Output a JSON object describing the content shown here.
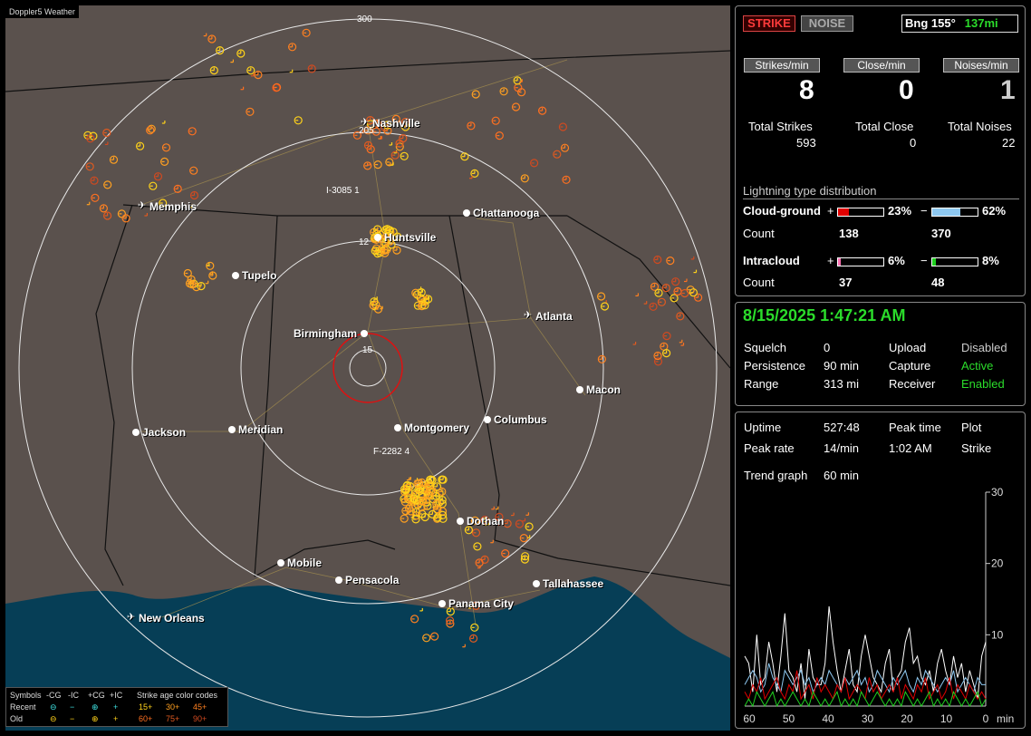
{
  "map": {
    "title": "Doppler5 Weather",
    "ring_labels": [
      "300",
      "205",
      "15"
    ],
    "cities": [
      {
        "name": "Nashville",
        "icon": "airport-icon"
      },
      {
        "name": "Memphis",
        "icon": "airport-icon"
      },
      {
        "name": "Chattanooga",
        "icon": "city-dot-icon"
      },
      {
        "name": "Huntsville",
        "icon": "city-dot-icon"
      },
      {
        "name": "Tupelo",
        "icon": "city-dot-icon"
      },
      {
        "name": "Atlanta",
        "icon": "airport-icon"
      },
      {
        "name": "Birmingham",
        "icon": "city-dot-icon"
      },
      {
        "name": "Macon",
        "icon": "city-dot-icon"
      },
      {
        "name": "Jackson",
        "icon": "city-dot-icon"
      },
      {
        "name": "Meridian",
        "icon": "city-dot-icon"
      },
      {
        "name": "Montgomery",
        "icon": "city-dot-icon"
      },
      {
        "name": "Columbus",
        "icon": "city-dot-icon"
      },
      {
        "name": "Dothan",
        "icon": "city-dot-icon"
      },
      {
        "name": "Mobile",
        "icon": "city-dot-icon"
      },
      {
        "name": "Pensacola",
        "icon": "city-dot-icon"
      },
      {
        "name": "Tallahassee",
        "icon": "city-dot-icon"
      },
      {
        "name": "Panama City",
        "icon": "city-dot-icon"
      },
      {
        "name": "New Orleans",
        "icon": "airport-icon"
      }
    ],
    "sensor_labels": [
      "I-3085 1",
      "F-2282 4",
      "12"
    ],
    "legend": {
      "symbols_label": "Symbols",
      "col_headers": [
        "-CG",
        "-IC",
        "+CG",
        "+IC"
      ],
      "recent_label": "Recent",
      "old_label": "Old",
      "age_title": "Strike age color codes",
      "age_recent": [
        "15+",
        "30+",
        "45+"
      ],
      "age_old": [
        "60+",
        "75+",
        "90+"
      ],
      "age_colors": [
        "#ffd21a",
        "#ffa020",
        "#ff8020",
        "#ff7020",
        "#e05a20",
        "#d04a20"
      ]
    }
  },
  "stats": {
    "strike_button": "STRIKE",
    "noise_button": "NOISE",
    "bearing": "Bng 155°",
    "distance": "137mi",
    "rate_buttons": [
      "Strikes/min",
      "Close/min",
      "Noises/min"
    ],
    "rates": [
      "8",
      "0",
      "1"
    ],
    "total_labels": [
      "Total Strikes",
      "Total Close",
      "Total Noises"
    ],
    "totals": [
      "593",
      "0",
      "22"
    ],
    "distribution_title": "Lightning type distribution",
    "cloud_ground": {
      "label": "Cloud-ground",
      "plus": "+",
      "minus": "−",
      "plus_pct": "23%",
      "minus_pct": "62%",
      "plus_value": 0.23,
      "minus_value": 0.62,
      "plus_color": "#e00000",
      "minus_color": "#8ec8f0"
    },
    "cg_count_label": "Count",
    "cg_counts": [
      "138",
      "370"
    ],
    "intracloud": {
      "label": "Intracloud",
      "plus": "+",
      "minus": "−",
      "plus_pct": "6%",
      "minus_pct": "8%",
      "plus_value": 0.06,
      "minus_value": 0.08,
      "plus_color": "#ff6fb0",
      "minus_color": "#20d020"
    },
    "ic_count_label": "Count",
    "ic_counts": [
      "37",
      "48"
    ]
  },
  "status": {
    "datetime": "8/15/2025 1:47:21 AM",
    "rows": [
      {
        "label": "Squelch",
        "value": "0",
        "label2": "Upload",
        "value2": "Disabled"
      },
      {
        "label": "Persistence",
        "value": "90 min",
        "label2": "Capture",
        "value2": "Active"
      },
      {
        "label": "Range",
        "value": "313 mi",
        "label2": "Receiver",
        "value2": "Enabled"
      }
    ],
    "value2_colors": [
      "#cccccc",
      "#2bdc2b",
      "#2bdc2b"
    ]
  },
  "trend": {
    "uptime_label": "Uptime",
    "uptime": "527:48",
    "peak_time_label": "Peak time",
    "peak_time": "1:02 AM",
    "plot_label": "Plot",
    "peak_rate_label": "Peak rate",
    "peak_rate": "14/min",
    "plot_value": "Strike",
    "trend_label": "Trend graph",
    "trend_value": "60 min",
    "chart_data": {
      "type": "line",
      "x_ticks": [
        "60",
        "50",
        "40",
        "30",
        "20",
        "10",
        "0"
      ],
      "x_unit": "min",
      "y_ticks": [
        "30",
        "20",
        "10"
      ],
      "ylim": [
        0,
        30
      ],
      "series": [
        {
          "color": "#ffffff",
          "values": [
            7,
            6,
            2,
            10,
            3,
            4,
            9,
            6,
            2,
            7,
            13,
            5,
            4,
            2,
            6,
            1,
            8,
            4,
            3,
            3,
            6,
            14,
            9,
            5,
            2,
            5,
            8,
            3,
            2,
            7,
            10,
            7,
            4,
            3,
            2,
            6,
            8,
            2,
            4,
            5,
            9,
            11,
            6,
            7,
            4,
            3,
            5,
            2,
            6,
            8,
            5,
            3,
            7,
            4,
            6,
            2,
            5,
            3,
            1,
            7,
            9
          ]
        },
        {
          "color": "#8ec8f0",
          "values": [
            3,
            4,
            5,
            4,
            2,
            3,
            6,
            4,
            3,
            2,
            5,
            4,
            3,
            4,
            5,
            3,
            4,
            2,
            3,
            4,
            3,
            5,
            4,
            3,
            2,
            4,
            3,
            4,
            5,
            3,
            4,
            2,
            3,
            5,
            4,
            3,
            2,
            4,
            3,
            4,
            5,
            3,
            2,
            4,
            3,
            5,
            4,
            3,
            2,
            3,
            4,
            3,
            5,
            2,
            3,
            4,
            3,
            2,
            4,
            3,
            3
          ]
        },
        {
          "color": "#e00000",
          "values": [
            2,
            1,
            3,
            2,
            4,
            1,
            2,
            3,
            4,
            2,
            1,
            3,
            2,
            5,
            1,
            2,
            3,
            1,
            4,
            2,
            3,
            2,
            1,
            3,
            2,
            4,
            1,
            2,
            3,
            2,
            1,
            4,
            2,
            3,
            1,
            2,
            3,
            2,
            4,
            1,
            3,
            2,
            1,
            3,
            2,
            4,
            1,
            2,
            3,
            1,
            2,
            4,
            1,
            3,
            2,
            1,
            3,
            2,
            1,
            2,
            1
          ]
        },
        {
          "color": "#20d020",
          "values": [
            0,
            1,
            0,
            2,
            1,
            0,
            1,
            2,
            0,
            1,
            0,
            1,
            2,
            1,
            0,
            1,
            0,
            2,
            1,
            0,
            1,
            0,
            1,
            2,
            0,
            1,
            0,
            1,
            0,
            2,
            1,
            0,
            1,
            2,
            1,
            0,
            1,
            0,
            1,
            0,
            2,
            1,
            0,
            1,
            0,
            1,
            2,
            0,
            1,
            0,
            1,
            0,
            2,
            1,
            0,
            1,
            0,
            1,
            2,
            0,
            1
          ]
        }
      ]
    }
  }
}
